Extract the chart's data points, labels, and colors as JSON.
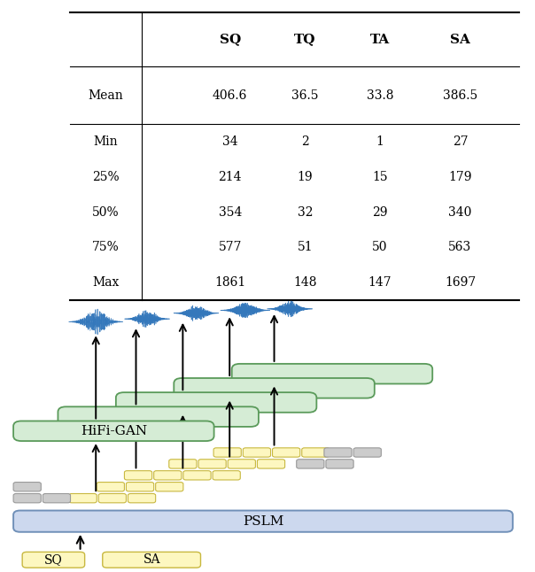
{
  "table": {
    "headers": [
      "",
      "SQ",
      "TQ",
      "TA",
      "SA"
    ],
    "rows": [
      [
        "Mean",
        "406.6",
        "36.5",
        "33.8",
        "386.5"
      ],
      [
        "Min",
        "34",
        "2",
        "1",
        "27"
      ],
      [
        "25%",
        "214",
        "19",
        "15",
        "179"
      ],
      [
        "50%",
        "354",
        "32",
        "29",
        "340"
      ],
      [
        "75%",
        "577",
        "51",
        "50",
        "563"
      ],
      [
        "Max",
        "1861",
        "148",
        "147",
        "1697"
      ]
    ]
  },
  "colors": {
    "green_fill": "#d5ecd5",
    "green_edge": "#5a9a5a",
    "yellow_fill": "#fdf7c0",
    "yellow_edge": "#c8b840",
    "blue_fill": "#ccd8ee",
    "blue_edge": "#7090b8",
    "gray_fill": "#cccccc",
    "gray_edge": "#999999",
    "waveform": "#3377bb",
    "bg": "#ffffff"
  },
  "labels": {
    "pslm": "PSLM",
    "hifigan": "HiFi-GAN",
    "sq": "SQ",
    "sa": "SA"
  }
}
